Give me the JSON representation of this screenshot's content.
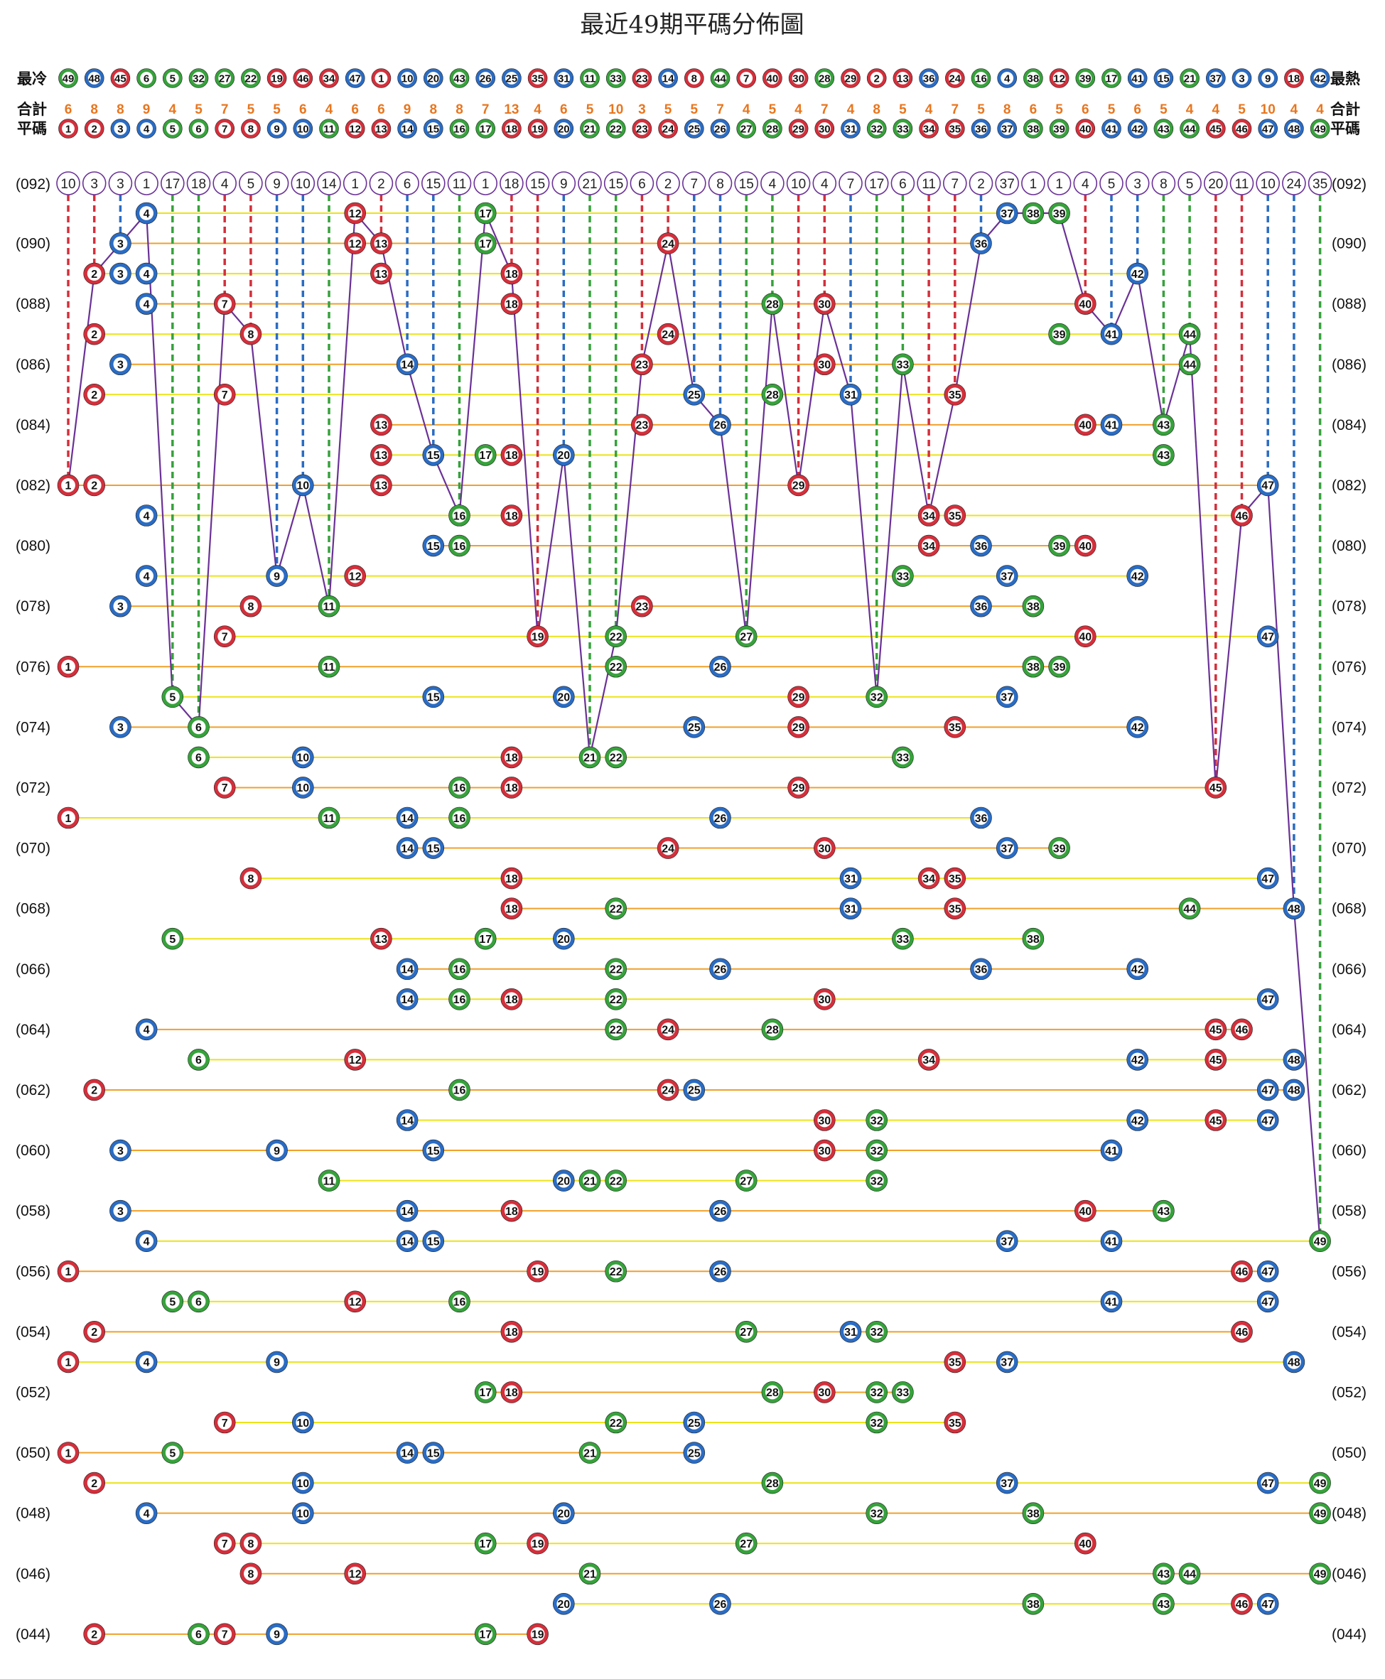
{
  "title": "最近49期平碼分佈圖",
  "labels": {
    "coldest": "最冷",
    "hottest": "最熱",
    "total": "合計",
    "number": "平碼"
  },
  "colors": {
    "red": "#d42f3b",
    "blue": "#2a6cc4",
    "green": "#36a23b",
    "line_yellow": "#ece318",
    "line_orange": "#f0a02a",
    "line_purple": "#6a3196",
    "count_orange": "#e8761e"
  },
  "chart_data": {
    "type": "table",
    "cold_to_hot": [
      49,
      48,
      45,
      6,
      5,
      32,
      27,
      22,
      19,
      46,
      34,
      47,
      1,
      10,
      20,
      43,
      26,
      25,
      35,
      31,
      11,
      33,
      23,
      14,
      8,
      44,
      7,
      40,
      30,
      28,
      29,
      2,
      13,
      36,
      24,
      16,
      4,
      38,
      12,
      39,
      17,
      41,
      15,
      21,
      37,
      3,
      9,
      18,
      42
    ],
    "totals": [
      6,
      8,
      8,
      9,
      4,
      5,
      7,
      5,
      5,
      6,
      4,
      6,
      6,
      9,
      8,
      8,
      7,
      13,
      4,
      6,
      5,
      10,
      3,
      5,
      5,
      7,
      4,
      5,
      4,
      7,
      4,
      8,
      5,
      4,
      7,
      5,
      8,
      6,
      5,
      6,
      5,
      6,
      5,
      4,
      4,
      5,
      10,
      4,
      4
    ],
    "numbers": [
      1,
      2,
      3,
      4,
      5,
      6,
      7,
      8,
      9,
      10,
      11,
      12,
      13,
      14,
      15,
      16,
      17,
      18,
      19,
      20,
      21,
      22,
      23,
      24,
      25,
      26,
      27,
      28,
      29,
      30,
      31,
      32,
      33,
      34,
      35,
      36,
      37,
      38,
      39,
      40,
      41,
      42,
      43,
      44,
      45,
      46,
      47,
      48,
      49
    ],
    "current_label": "(092)",
    "current_gaps": [
      10,
      3,
      3,
      1,
      17,
      18,
      4,
      5,
      9,
      10,
      14,
      1,
      2,
      6,
      15,
      11,
      1,
      18,
      15,
      9,
      21,
      15,
      6,
      2,
      7,
      8,
      15,
      4,
      10,
      4,
      7,
      17,
      6,
      11,
      7,
      2,
      37,
      1,
      1,
      4,
      5,
      3,
      8,
      5,
      20,
      11,
      10,
      24,
      35
    ],
    "draws": [
      {
        "label": "",
        "numbers": [
          4,
          12,
          17,
          37,
          38,
          39
        ]
      },
      {
        "label": "(090)",
        "numbers": [
          3,
          12,
          13,
          17,
          24,
          36
        ]
      },
      {
        "label": "",
        "numbers": [
          2,
          3,
          4,
          13,
          18,
          42
        ]
      },
      {
        "label": "(088)",
        "numbers": [
          4,
          7,
          18,
          28,
          30,
          40
        ]
      },
      {
        "label": "",
        "numbers": [
          2,
          8,
          24,
          39,
          41,
          44
        ]
      },
      {
        "label": "(086)",
        "numbers": [
          3,
          14,
          23,
          30,
          33,
          44
        ]
      },
      {
        "label": "",
        "numbers": [
          2,
          7,
          25,
          28,
          31,
          35
        ]
      },
      {
        "label": "(084)",
        "numbers": [
          13,
          23,
          26,
          40,
          41,
          43
        ]
      },
      {
        "label": "",
        "numbers": [
          13,
          15,
          17,
          18,
          20,
          43
        ]
      },
      {
        "label": "(082)",
        "numbers": [
          1,
          2,
          10,
          13,
          29,
          47
        ]
      },
      {
        "label": "",
        "numbers": [
          4,
          16,
          18,
          34,
          35,
          46
        ]
      },
      {
        "label": "(080)",
        "numbers": [
          15,
          16,
          34,
          36,
          39,
          40
        ]
      },
      {
        "label": "",
        "numbers": [
          4,
          9,
          12,
          33,
          37,
          42
        ]
      },
      {
        "label": "(078)",
        "numbers": [
          3,
          8,
          11,
          23,
          36,
          38
        ]
      },
      {
        "label": "",
        "numbers": [
          7,
          19,
          22,
          27,
          40,
          47
        ]
      },
      {
        "label": "(076)",
        "numbers": [
          1,
          11,
          22,
          26,
          38,
          39
        ]
      },
      {
        "label": "",
        "numbers": [
          5,
          15,
          20,
          29,
          32,
          37
        ]
      },
      {
        "label": "(074)",
        "numbers": [
          3,
          6,
          25,
          29,
          35,
          42
        ]
      },
      {
        "label": "",
        "numbers": [
          6,
          10,
          18,
          21,
          22,
          33
        ]
      },
      {
        "label": "(072)",
        "numbers": [
          7,
          10,
          16,
          18,
          29,
          45
        ]
      },
      {
        "label": "",
        "numbers": [
          1,
          11,
          14,
          16,
          26,
          36
        ]
      },
      {
        "label": "(070)",
        "numbers": [
          14,
          15,
          24,
          30,
          37,
          39
        ]
      },
      {
        "label": "",
        "numbers": [
          8,
          18,
          31,
          34,
          35,
          47
        ]
      },
      {
        "label": "(068)",
        "numbers": [
          18,
          22,
          31,
          35,
          44,
          48
        ]
      },
      {
        "label": "",
        "numbers": [
          5,
          13,
          17,
          20,
          33,
          38
        ]
      },
      {
        "label": "(066)",
        "numbers": [
          14,
          16,
          22,
          26,
          36,
          42
        ]
      },
      {
        "label": "",
        "numbers": [
          14,
          16,
          18,
          22,
          30,
          47
        ]
      },
      {
        "label": "(064)",
        "numbers": [
          4,
          22,
          24,
          28,
          45,
          46
        ]
      },
      {
        "label": "",
        "numbers": [
          6,
          12,
          34,
          42,
          45,
          48
        ]
      },
      {
        "label": "(062)",
        "numbers": [
          2,
          16,
          24,
          25,
          47,
          48
        ]
      },
      {
        "label": "",
        "numbers": [
          14,
          30,
          32,
          42,
          45,
          47
        ]
      },
      {
        "label": "(060)",
        "numbers": [
          3,
          9,
          15,
          30,
          32,
          41
        ]
      },
      {
        "label": "",
        "numbers": [
          11,
          20,
          21,
          22,
          27,
          32
        ]
      },
      {
        "label": "(058)",
        "numbers": [
          3,
          14,
          18,
          26,
          40,
          43
        ]
      },
      {
        "label": "",
        "numbers": [
          4,
          14,
          15,
          37,
          41,
          49
        ]
      },
      {
        "label": "(056)",
        "numbers": [
          1,
          19,
          22,
          26,
          46,
          47
        ]
      },
      {
        "label": "",
        "numbers": [
          5,
          6,
          12,
          16,
          41,
          47
        ]
      },
      {
        "label": "(054)",
        "numbers": [
          2,
          18,
          27,
          31,
          32,
          46
        ]
      },
      {
        "label": "",
        "numbers": [
          1,
          4,
          9,
          35,
          37,
          48
        ]
      },
      {
        "label": "(052)",
        "numbers": [
          17,
          18,
          28,
          30,
          32,
          33
        ]
      },
      {
        "label": "",
        "numbers": [
          7,
          10,
          22,
          25,
          32,
          35
        ]
      },
      {
        "label": "(050)",
        "numbers": [
          1,
          5,
          14,
          15,
          21,
          25
        ]
      },
      {
        "label": "",
        "numbers": [
          2,
          10,
          28,
          37,
          47,
          49
        ]
      },
      {
        "label": "(048)",
        "numbers": [
          4,
          10,
          20,
          32,
          38,
          49
        ]
      },
      {
        "label": "",
        "numbers": [
          7,
          8,
          17,
          19,
          27,
          40
        ]
      },
      {
        "label": "(046)",
        "numbers": [
          8,
          12,
          21,
          43,
          44,
          49
        ]
      },
      {
        "label": "",
        "numbers": [
          20,
          26,
          38,
          43,
          46,
          47
        ]
      },
      {
        "label": "(044)",
        "numbers": [
          2,
          6,
          7,
          9,
          17,
          19
        ]
      }
    ]
  }
}
